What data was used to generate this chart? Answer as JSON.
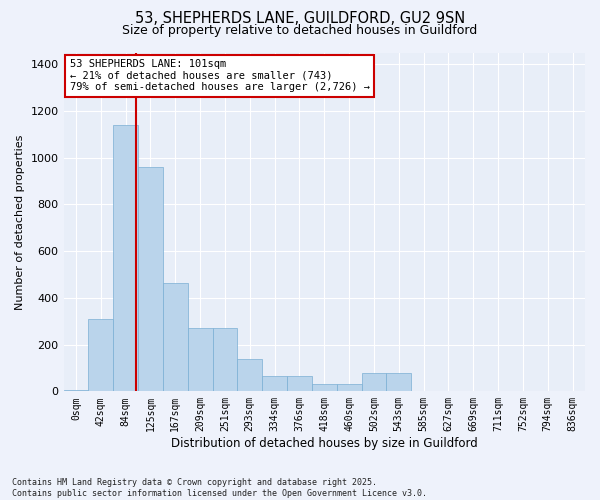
{
  "title_line1": "53, SHEPHERDS LANE, GUILDFORD, GU2 9SN",
  "title_line2": "Size of property relative to detached houses in Guildford",
  "xlabel": "Distribution of detached houses by size in Guildford",
  "ylabel": "Number of detached properties",
  "annotation_line1": "53 SHEPHERDS LANE: 101sqm",
  "annotation_line2": "← 21% of detached houses are smaller (743)",
  "annotation_line3": "79% of semi-detached houses are larger (2,726) →",
  "bar_color": "#bad4eb",
  "bar_edge_color": "#7aafd4",
  "background_color": "#e8eef8",
  "fig_bg": "#eef2fb",
  "grid_color": "#ffffff",
  "vline_color": "#cc0000",
  "categories": [
    "0sqm",
    "42sqm",
    "84sqm",
    "125sqm",
    "167sqm",
    "209sqm",
    "251sqm",
    "293sqm",
    "334sqm",
    "376sqm",
    "418sqm",
    "460sqm",
    "502sqm",
    "543sqm",
    "585sqm",
    "627sqm",
    "669sqm",
    "711sqm",
    "752sqm",
    "794sqm",
    "836sqm"
  ],
  "values": [
    5,
    310,
    1140,
    960,
    465,
    270,
    270,
    140,
    65,
    65,
    30,
    30,
    80,
    80,
    0,
    0,
    0,
    0,
    0,
    0,
    0
  ],
  "ylim_max": 1450,
  "yticks": [
    0,
    200,
    400,
    600,
    800,
    1000,
    1200,
    1400
  ],
  "footer_line1": "Contains HM Land Registry data © Crown copyright and database right 2025.",
  "footer_line2": "Contains public sector information licensed under the Open Government Licence v3.0."
}
